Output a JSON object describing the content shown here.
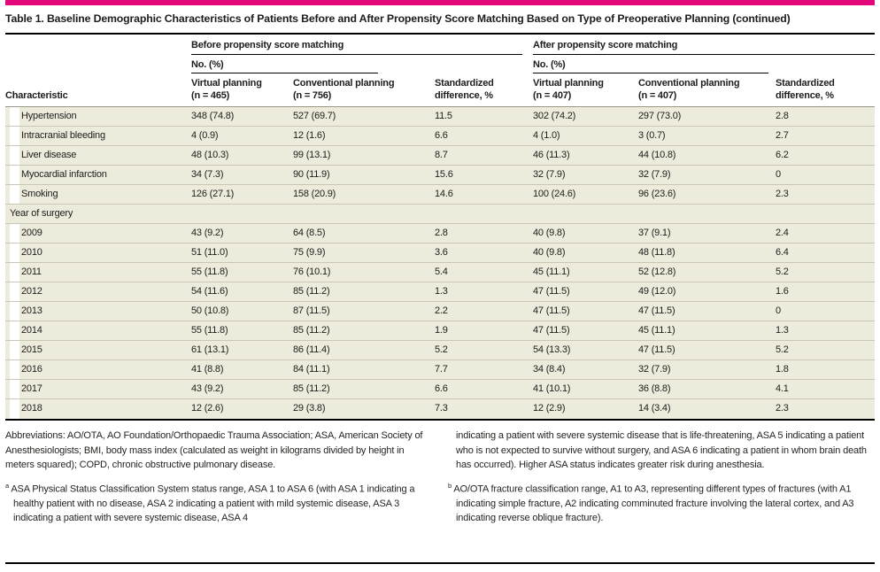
{
  "colors": {
    "accent": "#e2087c",
    "row_bg": "#edebdc"
  },
  "title": "Table 1. Baseline Demographic Characteristics of Patients Before and After Propensity Score Matching Based on Type of Preoperative Planning (continued)",
  "table": {
    "characteristic_header": "Characteristic",
    "groups": [
      {
        "label": "Before propensity score matching",
        "unit": "No. (%)",
        "columns": [
          {
            "name": "Virtual planning",
            "n": "(n = 465)"
          },
          {
            "name": "Conventional planning",
            "n": "(n = 756)"
          },
          {
            "name": "Standardized",
            "n": "difference, %"
          }
        ]
      },
      {
        "label": "After propensity score matching",
        "unit": "No. (%)",
        "columns": [
          {
            "name": "Virtual planning",
            "n": "(n = 407)"
          },
          {
            "name": "Conventional planning",
            "n": "(n = 407)"
          },
          {
            "name": "Standardized",
            "n": "difference, %"
          }
        ]
      }
    ],
    "rows": [
      {
        "label": "Hypertension",
        "indent": true,
        "cells": [
          "348 (74.8)",
          "527 (69.7)",
          "11.5",
          "302 (74.2)",
          "297 (73.0)",
          "2.8"
        ]
      },
      {
        "label": "Intracranial bleeding",
        "indent": true,
        "cells": [
          "4 (0.9)",
          "12 (1.6)",
          "6.6",
          "4 (1.0)",
          "3 (0.7)",
          "2.7"
        ]
      },
      {
        "label": "Liver disease",
        "indent": true,
        "cells": [
          "48 (10.3)",
          "99 (13.1)",
          "8.7",
          "46 (11.3)",
          "44 (10.8)",
          "6.2"
        ]
      },
      {
        "label": "Myocardial infarction",
        "indent": true,
        "cells": [
          "34 (7.3)",
          "90 (11.9)",
          "15.6",
          "32 (7.9)",
          "32 (7.9)",
          "0"
        ]
      },
      {
        "label": "Smoking",
        "indent": true,
        "cells": [
          "126 (27.1)",
          "158 (20.9)",
          "14.6",
          "100 (24.6)",
          "96 (23.6)",
          "2.3"
        ]
      },
      {
        "label": "Year of surgery",
        "indent": false,
        "cells": [
          "",
          "",
          "",
          "",
          "",
          ""
        ]
      },
      {
        "label": "2009",
        "indent": true,
        "cells": [
          "43 (9.2)",
          "64 (8.5)",
          "2.8",
          "40 (9.8)",
          "37 (9.1)",
          "2.4"
        ]
      },
      {
        "label": "2010",
        "indent": true,
        "cells": [
          "51 (11.0)",
          "75 (9.9)",
          "3.6",
          "40 (9.8)",
          "48 (11.8)",
          "6.4"
        ]
      },
      {
        "label": "2011",
        "indent": true,
        "cells": [
          "55 (11.8)",
          "76 (10.1)",
          "5.4",
          "45 (11.1)",
          "52 (12.8)",
          "5.2"
        ]
      },
      {
        "label": "2012",
        "indent": true,
        "cells": [
          "54 (11.6)",
          "85 (11.2)",
          "1.3",
          "47 (11.5)",
          "49 (12.0)",
          "1.6"
        ]
      },
      {
        "label": "2013",
        "indent": true,
        "cells": [
          "50 (10.8)",
          "87 (11.5)",
          "2.2",
          "47 (11.5)",
          "47 (11.5)",
          "0"
        ]
      },
      {
        "label": "2014",
        "indent": true,
        "cells": [
          "55 (11.8)",
          "85 (11.2)",
          "1.9",
          "47 (11.5)",
          "45 (11.1)",
          "1.3"
        ]
      },
      {
        "label": "2015",
        "indent": true,
        "cells": [
          "61 (13.1)",
          "86 (11.4)",
          "5.2",
          "54 (13.3)",
          "47 (11.5)",
          "5.2"
        ]
      },
      {
        "label": "2016",
        "indent": true,
        "cells": [
          "41 (8.8)",
          "84 (11.1)",
          "7.7",
          "34 (8.4)",
          "32 (7.9)",
          "1.8"
        ]
      },
      {
        "label": "2017",
        "indent": true,
        "cells": [
          "43 (9.2)",
          "85 (11.2)",
          "6.6",
          "41 (10.1)",
          "36 (8.8)",
          "4.1"
        ]
      },
      {
        "label": "2018",
        "indent": true,
        "cells": [
          "12 (2.6)",
          "29 (3.8)",
          "7.3",
          "12 (2.9)",
          "14 (3.4)",
          "2.3"
        ]
      }
    ]
  },
  "footnotes": {
    "abbreviations": "Abbreviations: AO/OTA, AO Foundation/Orthopaedic Trauma Association; ASA, American Society of Anesthesiologists; BMI, body mass index (calculated as weight in kilograms divided by height in meters squared); COPD, chronic obstructive pulmonary disease.",
    "a_marker": "a",
    "a_text": "ASA Physical Status Classification System status range, ASA 1 to ASA 6 (with ASA 1 indicating a healthy patient with no disease, ASA 2 indicating a patient with mild systemic disease, ASA 3 indicating a patient with severe systemic disease, ASA 4",
    "a_continued": "indicating a patient with severe systemic disease that is life-threatening, ASA 5 indicating a patient who is not expected to survive without surgery, and ASA 6 indicating a patient in whom brain death has occurred). Higher ASA status indicates greater risk during anesthesia.",
    "b_marker": "b",
    "b_text": "AO/OTA fracture classification range, A1 to A3, representing different types of fractures (with A1 indicating simple fracture, A2 indicating comminuted fracture involving the lateral cortex, and A3 indicating reverse oblique fracture)."
  }
}
